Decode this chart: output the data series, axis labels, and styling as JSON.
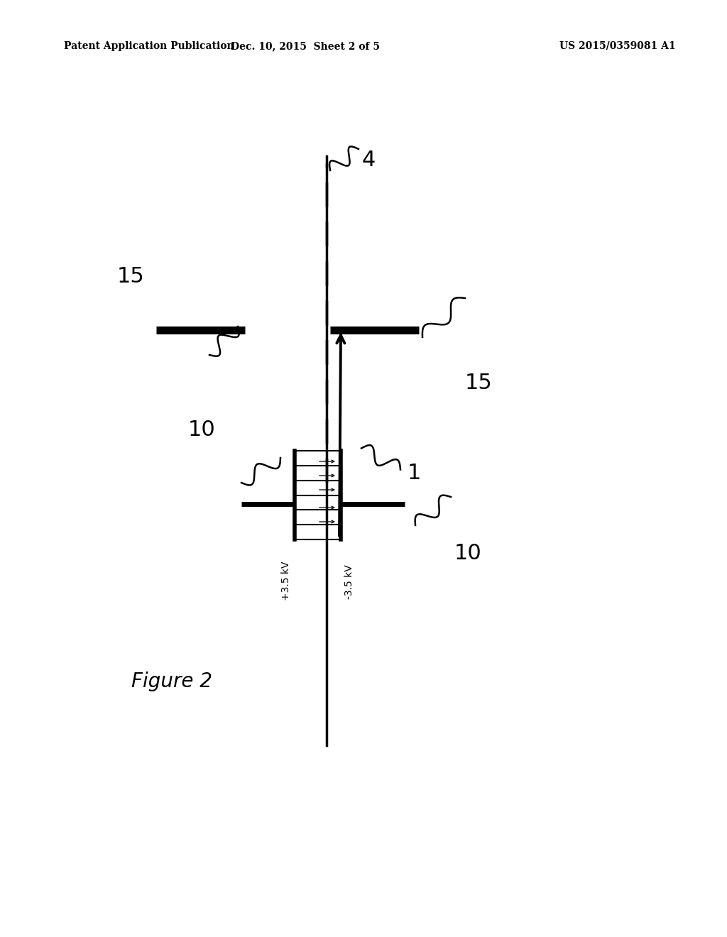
{
  "bg_color": "#ffffff",
  "header_left": "Patent Application Publication",
  "header_mid": "Dec. 10, 2015  Sheet 2 of 5",
  "header_right": "US 2015/0359081 A1",
  "figure_label": "Figure 2",
  "label_4": "4",
  "label_1": "1",
  "label_15a": "15",
  "label_15b": "15",
  "label_10a": "10",
  "label_10b": "10",
  "label_pos35kv": "+3.5 kV",
  "label_neg35kv": "-3.5 kV"
}
